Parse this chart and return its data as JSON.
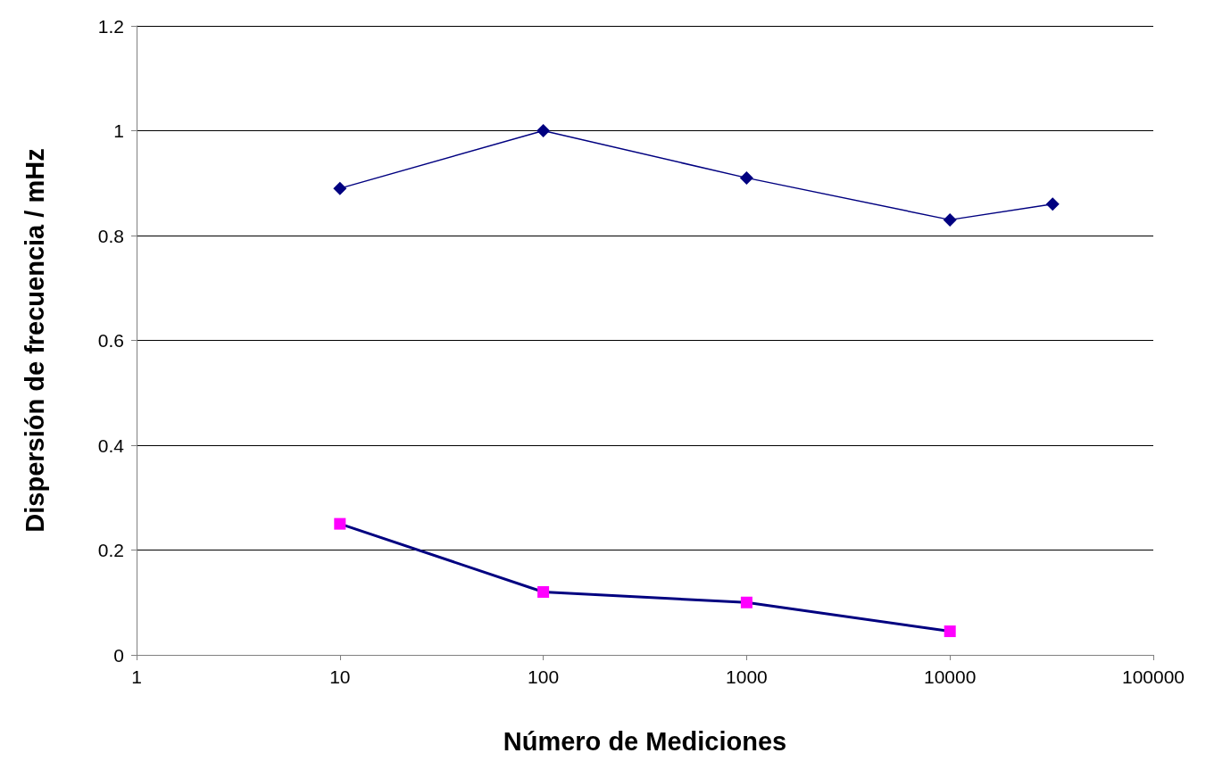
{
  "chart_data": {
    "type": "line",
    "xlabel": "Número de Mediciones",
    "ylabel": "Dispersión de frecuencia / mHz",
    "log": "x",
    "grid": "y",
    "xlim": [
      1,
      100000
    ],
    "xticks": [
      1,
      10,
      100,
      1000,
      10000,
      100000
    ],
    "ylim": [
      0,
      1.2
    ],
    "yticks": [
      0,
      0.2,
      0.4,
      0.6,
      0.8,
      1,
      1.2
    ],
    "series": [
      {
        "color": "#000080",
        "marker": "diamond",
        "x": [
          10,
          100,
          1000,
          10000,
          32000
        ],
        "values": [
          0.89,
          1.0,
          0.91,
          0.83,
          0.86
        ]
      },
      {
        "color": "#ff00ff",
        "marker": "square",
        "x": [
          10,
          100,
          1000,
          10000
        ],
        "values": [
          0.25,
          0.12,
          0.1,
          0.045
        ]
      }
    ]
  }
}
